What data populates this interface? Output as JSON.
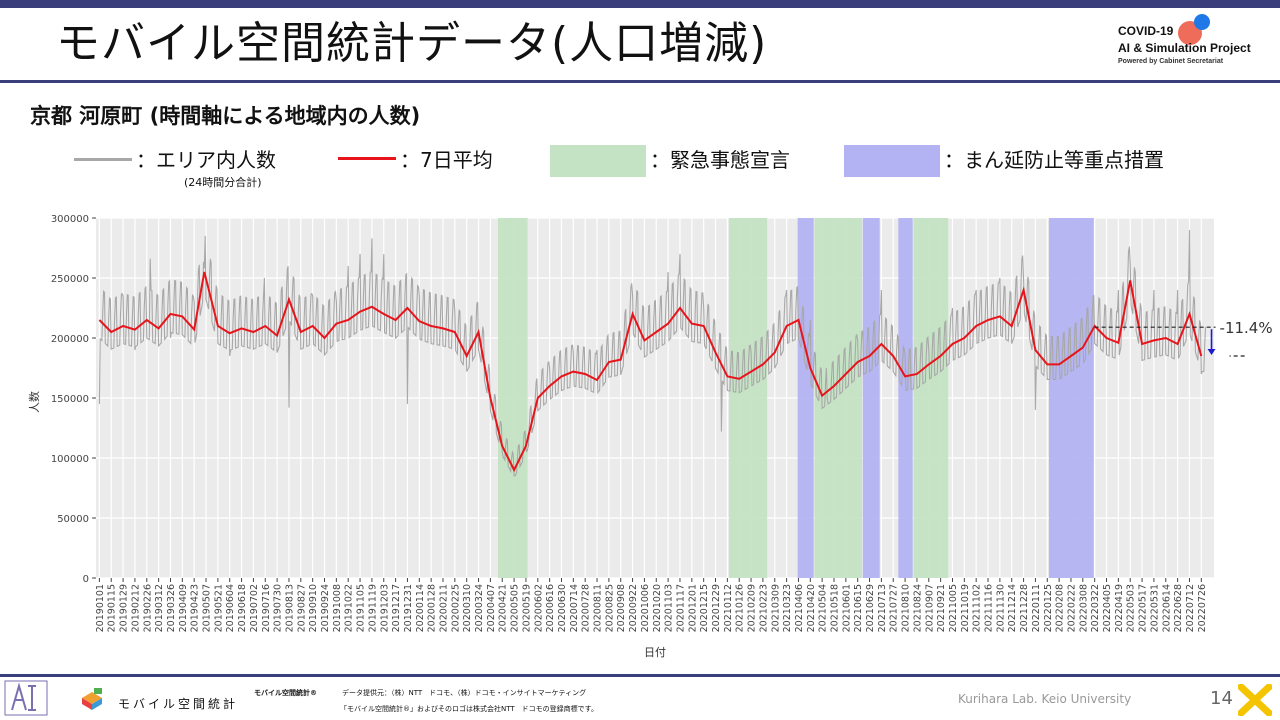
{
  "page": {
    "title": "モバイル空間統計データ(人口増減)",
    "subtitle": "京都 河原町 (時間軸による地域内の人数)"
  },
  "logo": {
    "line1": "COVID-19",
    "line2": "AI & Simulation Project",
    "line3": "Powered by Cabinet Secretariat"
  },
  "legend": {
    "area_label": "：エリア内人数",
    "area_note": "(24時間分合計)",
    "avg_label": "：7日平均",
    "emergency_label": "：緊急事態宣言",
    "semi_label": "：まん延防止等重点措置"
  },
  "colors": {
    "area_line": "#a8a8a8",
    "avg_line": "#e8141b",
    "emergency": "#c4e3c4",
    "semi": "#b3b3f3",
    "plot_bg": "#ebebeb",
    "accent": "#3a3f7c"
  },
  "chart_data": {
    "type": "line",
    "xlabel": "日付",
    "ylabel": "人数",
    "ylim": [
      0,
      300000
    ],
    "yticks": [
      "0",
      "50000",
      "100000",
      "150000",
      "200000",
      "250000",
      "300000"
    ],
    "x_tick_labels": [
      "20190101",
      "20190115",
      "20190129",
      "20190212",
      "20190226",
      "20190312",
      "20190326",
      "20190409",
      "20190423",
      "20190507",
      "20190521",
      "20190604",
      "20190618",
      "20190702",
      "20190716",
      "20190730",
      "20190813",
      "20190827",
      "20190910",
      "20190924",
      "20191008",
      "20191022",
      "20191105",
      "20191119",
      "20191203",
      "20191217",
      "20191231",
      "20200114",
      "20200128",
      "20200211",
      "20200225",
      "20200310",
      "20200324",
      "20200407",
      "20200421",
      "20200505",
      "20200519",
      "20200602",
      "20200616",
      "20200630",
      "20200714",
      "20200728",
      "20200811",
      "20200825",
      "20200908",
      "20200922",
      "20201006",
      "20201020",
      "20201103",
      "20201117",
      "20201201",
      "20201215",
      "20201229",
      "20210112",
      "20210126",
      "20210209",
      "20210223",
      "20210309",
      "20210323",
      "20210406",
      "20210420",
      "20210504",
      "20210518",
      "20210601",
      "20210615",
      "20210629",
      "20210713",
      "20210727",
      "20210810",
      "20210824",
      "20210907",
      "20210921",
      "20211005",
      "20211019",
      "20211102",
      "20211116",
      "20211130",
      "20211214",
      "20211228",
      "20220111",
      "20220125",
      "20220208",
      "20220222",
      "20220308",
      "20220322",
      "20220405",
      "20220419",
      "20220503",
      "20220517",
      "20220531",
      "20220614",
      "20220628",
      "20220712",
      "20220726"
    ],
    "x_range": [
      "20190101",
      "20220731"
    ],
    "series": [
      {
        "name": "エリア内人数",
        "values": [
          {
            "x": "20190101",
            "y": 145000
          },
          {
            "x": "20190129",
            "y": 235000
          },
          {
            "x": "20190212",
            "y": 190000
          },
          {
            "x": "20190302",
            "y": 266000
          },
          {
            "x": "20190326",
            "y": 200000
          },
          {
            "x": "20190423",
            "y": 230000
          },
          {
            "x": "20190505",
            "y": 258000
          },
          {
            "x": "20190604",
            "y": 185000
          },
          {
            "x": "20190715",
            "y": 250000
          },
          {
            "x": "20190813",
            "y": 142000
          },
          {
            "x": "20190910",
            "y": 235000
          },
          {
            "x": "20191008",
            "y": 230000
          },
          {
            "x": "20191022",
            "y": 260000
          },
          {
            "x": "20191105",
            "y": 270000
          },
          {
            "x": "20191119",
            "y": 283000
          },
          {
            "x": "20191203",
            "y": 270000
          },
          {
            "x": "20191231",
            "y": 145000
          },
          {
            "x": "20200114",
            "y": 235000
          },
          {
            "x": "20200225",
            "y": 222000
          },
          {
            "x": "20200324",
            "y": 190000
          },
          {
            "x": "20200421",
            "y": 105000
          },
          {
            "x": "20200505",
            "y": 85000
          },
          {
            "x": "20200519",
            "y": 108000
          },
          {
            "x": "20200616",
            "y": 175000
          },
          {
            "x": "20200714",
            "y": 188000
          },
          {
            "x": "20200811",
            "y": 190000
          },
          {
            "x": "20200922",
            "y": 235000
          },
          {
            "x": "20201103",
            "y": 255000
          },
          {
            "x": "20201117",
            "y": 270000
          },
          {
            "x": "20201215",
            "y": 225000
          },
          {
            "x": "20210105",
            "y": 122000
          },
          {
            "x": "20210209",
            "y": 188000
          },
          {
            "x": "20210323",
            "y": 240000
          },
          {
            "x": "20210420",
            "y": 215000
          },
          {
            "x": "20210510",
            "y": 150000
          },
          {
            "x": "20210615",
            "y": 198000
          },
          {
            "x": "20210713",
            "y": 240000
          },
          {
            "x": "20210810",
            "y": 185000
          },
          {
            "x": "20210907",
            "y": 190000
          },
          {
            "x": "20211005",
            "y": 225000
          },
          {
            "x": "20211102",
            "y": 240000
          },
          {
            "x": "20211130",
            "y": 250000
          },
          {
            "x": "20211228",
            "y": 248000
          },
          {
            "x": "20220111",
            "y": 140000
          },
          {
            "x": "20220208",
            "y": 185000
          },
          {
            "x": "20220308",
            "y": 200000
          },
          {
            "x": "20220419",
            "y": 240000
          },
          {
            "x": "20220503",
            "y": 262000
          },
          {
            "x": "20220531",
            "y": 240000
          },
          {
            "x": "20220628",
            "y": 240000
          },
          {
            "x": "20220712",
            "y": 290000
          },
          {
            "x": "20220726",
            "y": 170000
          }
        ]
      },
      {
        "name": "7日平均",
        "values": [
          {
            "x": "20190101",
            "y": 215000
          },
          {
            "x": "20190115",
            "y": 205000
          },
          {
            "x": "20190129",
            "y": 210000
          },
          {
            "x": "20190212",
            "y": 207000
          },
          {
            "x": "20190226",
            "y": 215000
          },
          {
            "x": "20190312",
            "y": 208000
          },
          {
            "x": "20190326",
            "y": 220000
          },
          {
            "x": "20190409",
            "y": 218000
          },
          {
            "x": "20190423",
            "y": 207000
          },
          {
            "x": "20190505",
            "y": 255000
          },
          {
            "x": "20190521",
            "y": 210000
          },
          {
            "x": "20190604",
            "y": 204000
          },
          {
            "x": "20190618",
            "y": 208000
          },
          {
            "x": "20190702",
            "y": 205000
          },
          {
            "x": "20190716",
            "y": 210000
          },
          {
            "x": "20190730",
            "y": 202000
          },
          {
            "x": "20190813",
            "y": 232000
          },
          {
            "x": "20190827",
            "y": 205000
          },
          {
            "x": "20190910",
            "y": 210000
          },
          {
            "x": "20190924",
            "y": 200000
          },
          {
            "x": "20191008",
            "y": 212000
          },
          {
            "x": "20191022",
            "y": 215000
          },
          {
            "x": "20191105",
            "y": 222000
          },
          {
            "x": "20191119",
            "y": 226000
          },
          {
            "x": "20191203",
            "y": 220000
          },
          {
            "x": "20191217",
            "y": 215000
          },
          {
            "x": "20191231",
            "y": 225000
          },
          {
            "x": "20200114",
            "y": 214000
          },
          {
            "x": "20200128",
            "y": 210000
          },
          {
            "x": "20200211",
            "y": 208000
          },
          {
            "x": "20200225",
            "y": 205000
          },
          {
            "x": "20200310",
            "y": 185000
          },
          {
            "x": "20200324",
            "y": 205000
          },
          {
            "x": "20200407",
            "y": 150000
          },
          {
            "x": "20200421",
            "y": 110000
          },
          {
            "x": "20200505",
            "y": 90000
          },
          {
            "x": "20200519",
            "y": 110000
          },
          {
            "x": "20200602",
            "y": 150000
          },
          {
            "x": "20200616",
            "y": 160000
          },
          {
            "x": "20200630",
            "y": 168000
          },
          {
            "x": "20200714",
            "y": 172000
          },
          {
            "x": "20200728",
            "y": 170000
          },
          {
            "x": "20200811",
            "y": 165000
          },
          {
            "x": "20200825",
            "y": 180000
          },
          {
            "x": "20200908",
            "y": 182000
          },
          {
            "x": "20200922",
            "y": 220000
          },
          {
            "x": "20201006",
            "y": 198000
          },
          {
            "x": "20201020",
            "y": 205000
          },
          {
            "x": "20201103",
            "y": 212000
          },
          {
            "x": "20201117",
            "y": 225000
          },
          {
            "x": "20201201",
            "y": 212000
          },
          {
            "x": "20201215",
            "y": 210000
          },
          {
            "x": "20201229",
            "y": 188000
          },
          {
            "x": "20210112",
            "y": 168000
          },
          {
            "x": "20210126",
            "y": 166000
          },
          {
            "x": "20210209",
            "y": 172000
          },
          {
            "x": "20210223",
            "y": 178000
          },
          {
            "x": "20210309",
            "y": 188000
          },
          {
            "x": "20210323",
            "y": 210000
          },
          {
            "x": "20210406",
            "y": 215000
          },
          {
            "x": "20210420",
            "y": 175000
          },
          {
            "x": "20210504",
            "y": 152000
          },
          {
            "x": "20210518",
            "y": 160000
          },
          {
            "x": "20210601",
            "y": 170000
          },
          {
            "x": "20210615",
            "y": 180000
          },
          {
            "x": "20210629",
            "y": 185000
          },
          {
            "x": "20210713",
            "y": 195000
          },
          {
            "x": "20210727",
            "y": 185000
          },
          {
            "x": "20210810",
            "y": 168000
          },
          {
            "x": "20210824",
            "y": 170000
          },
          {
            "x": "20210907",
            "y": 178000
          },
          {
            "x": "20210921",
            "y": 185000
          },
          {
            "x": "20211005",
            "y": 195000
          },
          {
            "x": "20211019",
            "y": 200000
          },
          {
            "x": "20211102",
            "y": 210000
          },
          {
            "x": "20211116",
            "y": 215000
          },
          {
            "x": "20211130",
            "y": 218000
          },
          {
            "x": "20211214",
            "y": 210000
          },
          {
            "x": "20211228",
            "y": 240000
          },
          {
            "x": "20220111",
            "y": 190000
          },
          {
            "x": "20220125",
            "y": 178000
          },
          {
            "x": "20220208",
            "y": 178000
          },
          {
            "x": "20220222",
            "y": 185000
          },
          {
            "x": "20220308",
            "y": 192000
          },
          {
            "x": "20220322",
            "y": 210000
          },
          {
            "x": "20220405",
            "y": 200000
          },
          {
            "x": "20220419",
            "y": 196000
          },
          {
            "x": "20220503",
            "y": 248000
          },
          {
            "x": "20220517",
            "y": 195000
          },
          {
            "x": "20220531",
            "y": 198000
          },
          {
            "x": "20220614",
            "y": 200000
          },
          {
            "x": "20220628",
            "y": 195000
          },
          {
            "x": "20220712",
            "y": 220000
          },
          {
            "x": "20220726",
            "y": 185000
          }
        ]
      }
    ],
    "bands": [
      {
        "type": "緊急事態宣言",
        "start": "20200416",
        "end": "20200521"
      },
      {
        "type": "緊急事態宣言",
        "start": "20210114",
        "end": "20210228"
      },
      {
        "type": "まん延防止等重点措置",
        "start": "20210405",
        "end": "20210424"
      },
      {
        "type": "緊急事態宣言",
        "start": "20210425",
        "end": "20210620"
      },
      {
        "type": "まん延防止等重点措置",
        "start": "20210621",
        "end": "20210711"
      },
      {
        "type": "まん延防止等重点措置",
        "start": "20210802",
        "end": "20210819"
      },
      {
        "type": "緊急事態宣言",
        "start": "20210820",
        "end": "20210930"
      },
      {
        "type": "まん延防止等重点措置",
        "start": "20220127",
        "end": "20220321"
      }
    ],
    "annotation": {
      "text": "-11.4%",
      "from": 209000,
      "to": 185000
    }
  },
  "footer": {
    "brand": "モバイル空間統計",
    "reg": "モバイル空間統計®",
    "source": "データ提供元：（株）NTT　ドコモ、（株）ドコモ・インサイトマーケティング",
    "trademark": "「モバイル空間統計®」およびそのロゴは株式会社NTT　ドコモの登録商標です。",
    "credit": "Kurihara Lab. Keio University",
    "page_number": "14"
  }
}
